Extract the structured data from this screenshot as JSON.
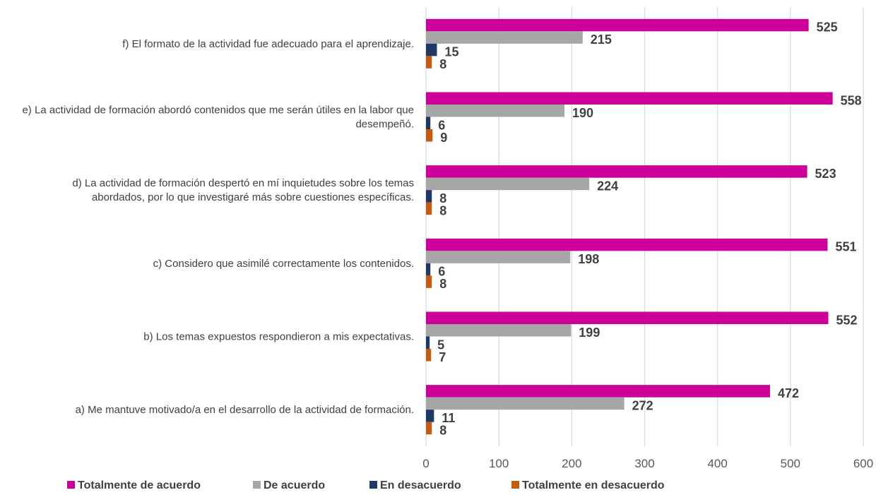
{
  "chart_data": {
    "type": "bar",
    "orientation": "horizontal",
    "categories": [
      "a) Me mantuve motivado/a en el desarrollo de la actividad de formación.",
      "b) Los temas expuestos respondieron a mis expectativas.",
      "c) Considero que asimilé correctamente los contenidos.",
      "d) La actividad de formación despertó en mí inquietudes sobre los temas abordados, por lo que investigaré más sobre cuestiones específicas.",
      "e) La actividad de formación abordó contenidos que me serán útiles en la labor que desempeñó.",
      "f) El formato de la actividad fue adecuado para el aprendizaje."
    ],
    "series": [
      {
        "name": "Totalmente de acuerdo",
        "color": "#CC0099",
        "values": [
          472,
          552,
          551,
          523,
          558,
          525
        ]
      },
      {
        "name": "De acuerdo",
        "color": "#A6A6A6",
        "values": [
          272,
          199,
          198,
          224,
          190,
          215
        ]
      },
      {
        "name": "En desacuerdo",
        "color": "#1F3864",
        "values": [
          11,
          5,
          6,
          8,
          6,
          15
        ]
      },
      {
        "name": "Totalmente en desacuerdo",
        "color": "#C55A11",
        "values": [
          8,
          7,
          8,
          8,
          9,
          8
        ]
      }
    ],
    "xlim": [
      0,
      600
    ],
    "xticks": [
      "0",
      "100",
      "200",
      "300",
      "400",
      "500",
      "600"
    ],
    "grid": true,
    "legend_position": "bottom",
    "data_labels": true
  }
}
